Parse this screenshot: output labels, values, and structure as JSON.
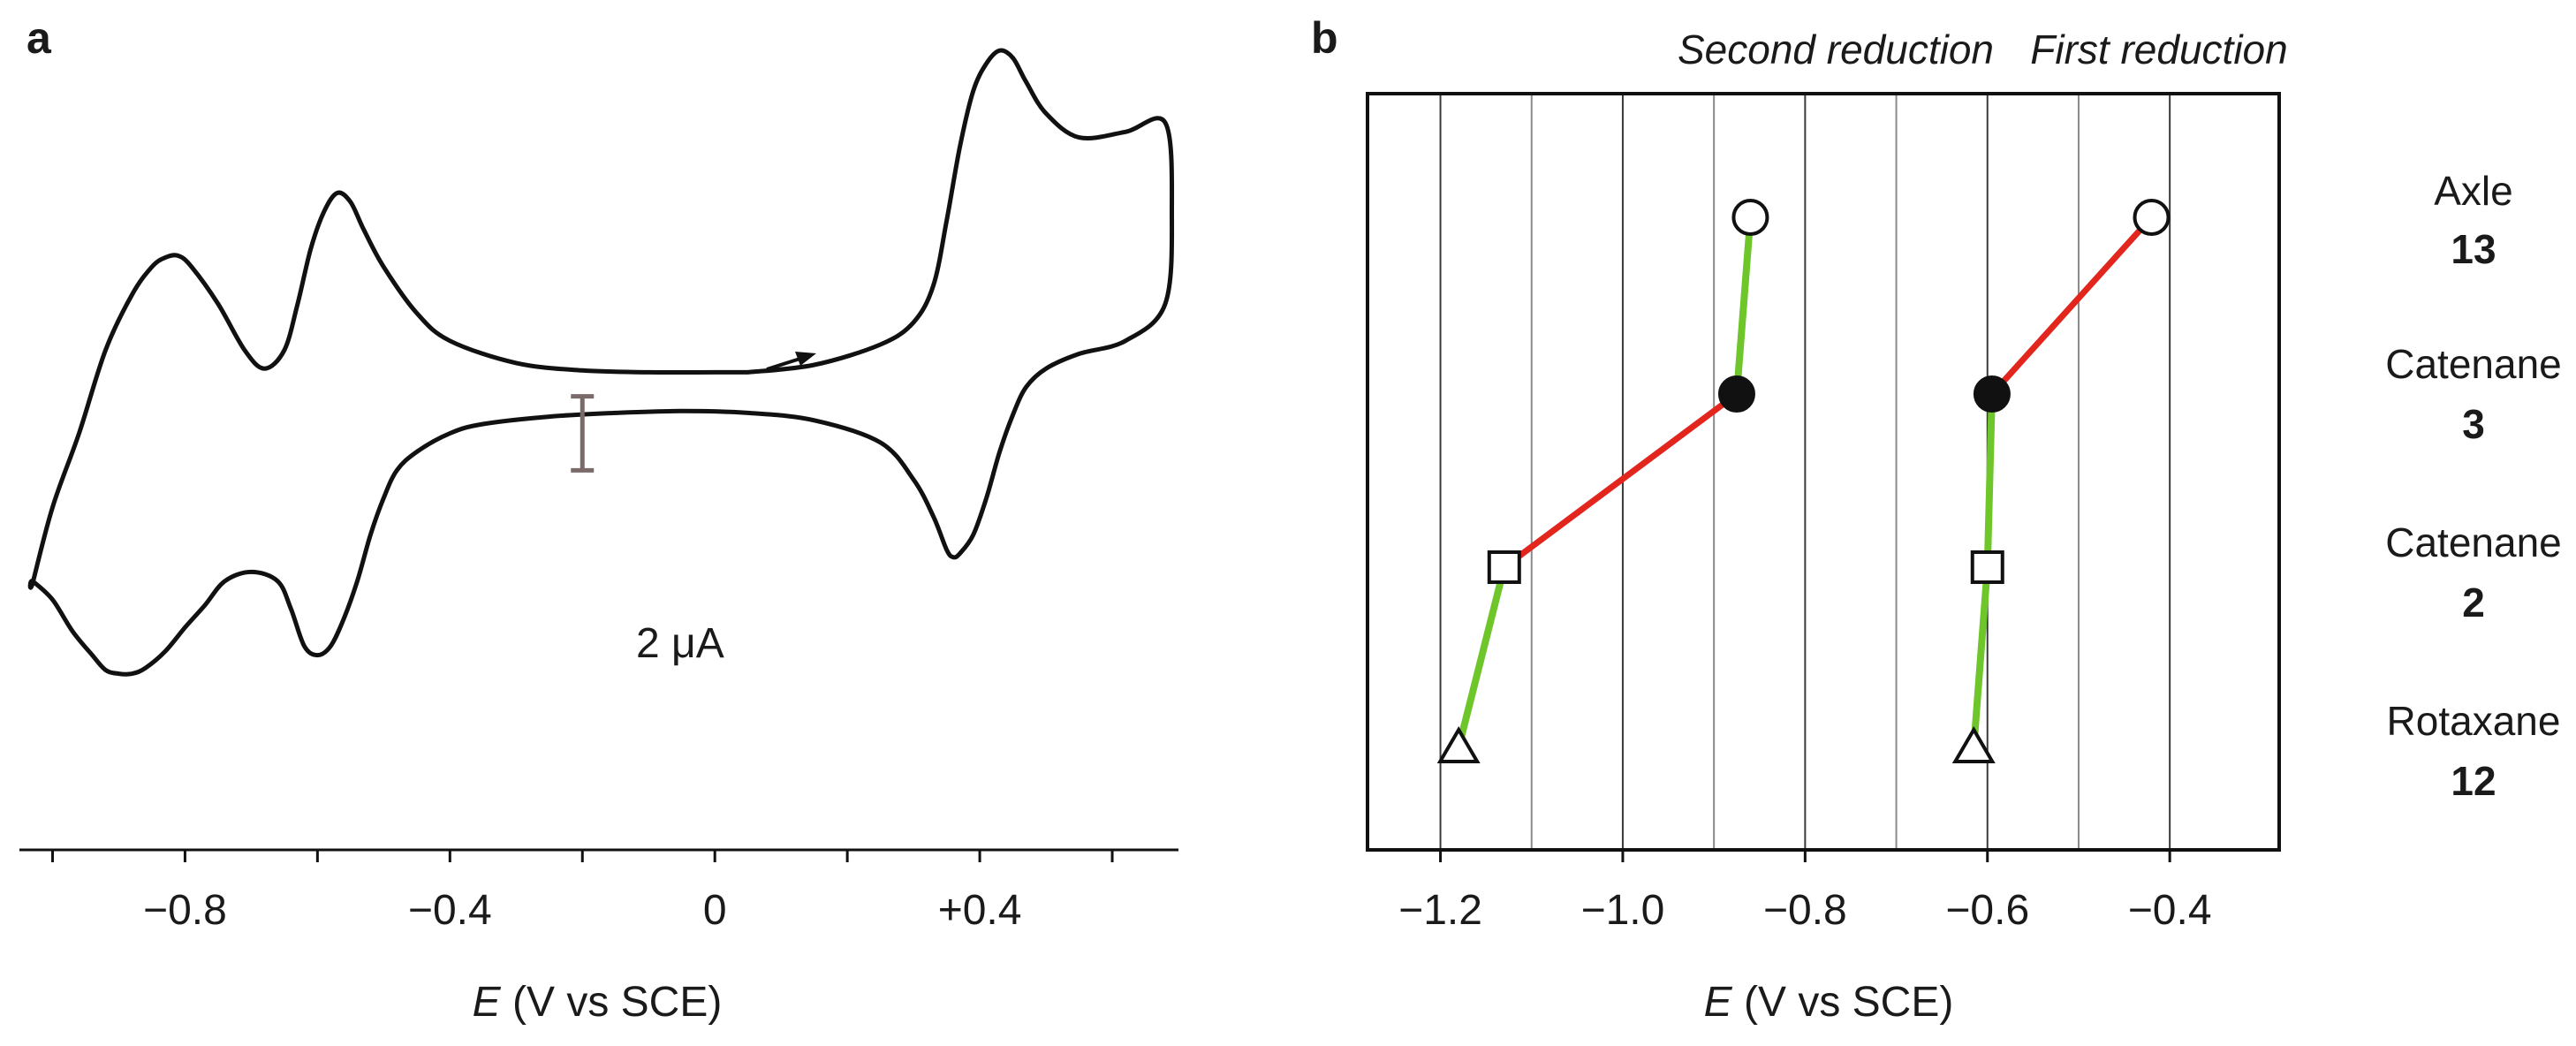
{
  "chart_data": [
    {
      "panel": "a",
      "type": "line",
      "description_label": "cyclic voltammogram",
      "xlabel_italic": "E",
      "xlabel_rest": " (V vs SCE)",
      "xlim": [
        -1.05,
        0.7
      ],
      "ylim": [
        -25,
        18
      ],
      "x_ticks": [
        -1.0,
        -0.8,
        -0.6,
        -0.4,
        -0.2,
        0.0,
        0.2,
        0.4,
        0.6
      ],
      "x_tick_labels": [
        {
          "value": -0.8,
          "label": "−0.8"
        },
        {
          "value": -0.4,
          "label": "−0.4"
        },
        {
          "value": 0.0,
          "label": "0"
        },
        {
          "value": 0.4,
          "label": "+0.4"
        }
      ],
      "scale_bar": {
        "label": "2 μA",
        "value_uA": 2,
        "x_center": -0.2,
        "y_center": -4
      },
      "series": [
        {
          "name": "CV trace",
          "x": [
            0.05,
            0.15,
            0.25,
            0.3,
            0.33,
            0.35,
            0.37,
            0.39,
            0.41,
            0.43,
            0.45,
            0.47,
            0.5,
            0.55,
            0.62,
            0.68,
            0.69,
            0.68,
            0.62,
            0.55,
            0.5,
            0.47,
            0.45,
            0.43,
            0.41,
            0.39,
            0.37,
            0.36,
            0.35,
            0.33,
            0.3,
            0.25,
            0.15,
            0.05,
            -0.05,
            -0.15,
            -0.25,
            -0.35,
            -0.4,
            -0.45,
            -0.48,
            -0.5,
            -0.52,
            -0.54,
            -0.56,
            -0.58,
            -0.6,
            -0.62,
            -0.64,
            -0.66,
            -0.7,
            -0.74,
            -0.77,
            -0.8,
            -0.83,
            -0.86,
            -0.88,
            -0.9,
            -0.92,
            -0.94,
            -0.97,
            -1.0,
            -1.03,
            -1.03,
            -1.0,
            -0.96,
            -0.92,
            -0.88,
            -0.85,
            -0.83,
            -0.81,
            -0.79,
            -0.75,
            -0.71,
            -0.68,
            -0.65,
            -0.63,
            -0.61,
            -0.59,
            -0.57,
            -0.55,
            -0.53,
            -0.5,
            -0.45,
            -0.4,
            -0.3,
            -0.2,
            -0.1,
            0.0,
            0.05
          ],
          "y": [
            -0.7,
            -0.3,
            0.8,
            2.0,
            4.0,
            7.5,
            11.5,
            14.5,
            16.0,
            16.7,
            16.3,
            15.0,
            13.3,
            12.0,
            12.3,
            12.8,
            8.0,
            3.0,
            1.0,
            0.3,
            -0.5,
            -1.5,
            -3.0,
            -5.0,
            -7.5,
            -9.5,
            -10.5,
            -10.7,
            -10.3,
            -8.5,
            -6.5,
            -4.5,
            -3.3,
            -2.9,
            -2.8,
            -2.9,
            -3.1,
            -3.5,
            -4.0,
            -5.0,
            -6.0,
            -7.5,
            -9.5,
            -12.0,
            -14.0,
            -15.5,
            -16.0,
            -15.5,
            -13.5,
            -12.0,
            -11.5,
            -12.0,
            -13.3,
            -14.5,
            -15.8,
            -16.7,
            -17.0,
            -17.0,
            -16.8,
            -16.0,
            -14.7,
            -13.0,
            -12.0,
            -12.1,
            -8.0,
            -4.0,
            0.5,
            3.5,
            5.0,
            5.5,
            5.6,
            5.0,
            3.0,
            0.5,
            -0.5,
            0.5,
            3.0,
            6.0,
            8.0,
            9.0,
            8.5,
            7.0,
            5.0,
            2.5,
            1.0,
            -0.2,
            -0.6,
            -0.7,
            -0.7,
            -0.7
          ]
        }
      ]
    },
    {
      "panel": "b",
      "type": "scatter",
      "xlabel_italic": "E",
      "xlabel_rest": " (V vs SCE)",
      "xlim": [
        -1.28,
        -0.28
      ],
      "x_ticks": [
        -1.2,
        -1.0,
        -0.8,
        -0.6,
        -0.4
      ],
      "x_tick_labels": [
        "−1.2",
        "−1.0",
        "−0.8",
        "−0.6",
        "−0.4"
      ],
      "gridlines_x": [
        -1.2,
        -1.1,
        -1.0,
        -0.9,
        -0.8,
        -0.7,
        -0.6,
        -0.5,
        -0.4
      ],
      "group_headers": [
        "Second reduction",
        "First reduction"
      ],
      "categories": [
        {
          "name": "Axle",
          "number": "13",
          "marker": "open-circle"
        },
        {
          "name": "Catenane",
          "number": "3",
          "marker": "filled-circle"
        },
        {
          "name": "Catenane",
          "number": "2",
          "marker": "open-square"
        },
        {
          "name": "Rotaxane",
          "number": "12",
          "marker": "open-triangle"
        }
      ],
      "series": [
        {
          "name": "Second reduction",
          "values": [
            -0.86,
            -0.875,
            -1.13,
            -1.18
          ]
        },
        {
          "name": "First reduction",
          "values": [
            -0.42,
            -0.595,
            -0.6,
            -0.615
          ]
        }
      ],
      "connector_colors": [
        {
          "series": "Second reduction",
          "segments": [
            "green",
            "red",
            "green"
          ]
        },
        {
          "series": "First reduction",
          "segments": [
            "red",
            "green",
            "green"
          ]
        }
      ],
      "colors": {
        "green": "#6ec62a",
        "red": "#e3261d"
      }
    }
  ]
}
